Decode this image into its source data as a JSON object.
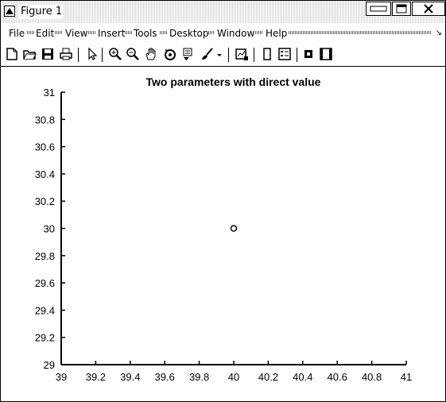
{
  "window": {
    "title": "Figure 1",
    "controls": [
      "minimize",
      "maximize",
      "close"
    ]
  },
  "menu": {
    "items": [
      "File",
      "Edit",
      "View",
      "Insert",
      "Tools",
      "Desktop",
      "Window",
      "Help"
    ],
    "overflow_icon": "double-chevron-icon"
  },
  "toolbar": {
    "buttons": [
      "new-figure-icon",
      "open-file-icon",
      "save-icon",
      "print-icon",
      "edit-plot-arrow-icon",
      "zoom-in-icon",
      "zoom-out-icon",
      "pan-hand-icon",
      "rotate-3d-icon",
      "data-cursor-icon",
      "brush-icon",
      "brush-dropdown-icon",
      "link-plot-icon",
      "insert-colorbar-icon",
      "insert-legend-icon",
      "hide-plot-tools-icon",
      "show-plot-tools-icon"
    ]
  },
  "chart_data": {
    "type": "scatter",
    "title": "Two parameters with direct value",
    "xlabel": "",
    "ylabel": "",
    "xlim": [
      39,
      41
    ],
    "ylim": [
      29,
      31
    ],
    "xticks": [
      "39",
      "39.2",
      "39.4",
      "39.6",
      "39.8",
      "40",
      "40.2",
      "40.4",
      "40.6",
      "40.8",
      "41"
    ],
    "yticks": [
      "29",
      "29.2",
      "29.4",
      "29.6",
      "29.8",
      "30",
      "30.2",
      "30.4",
      "30.6",
      "30.8",
      "31"
    ],
    "x": [
      40
    ],
    "y": [
      30
    ],
    "marker": "circle-open",
    "grid": false,
    "box": false
  }
}
